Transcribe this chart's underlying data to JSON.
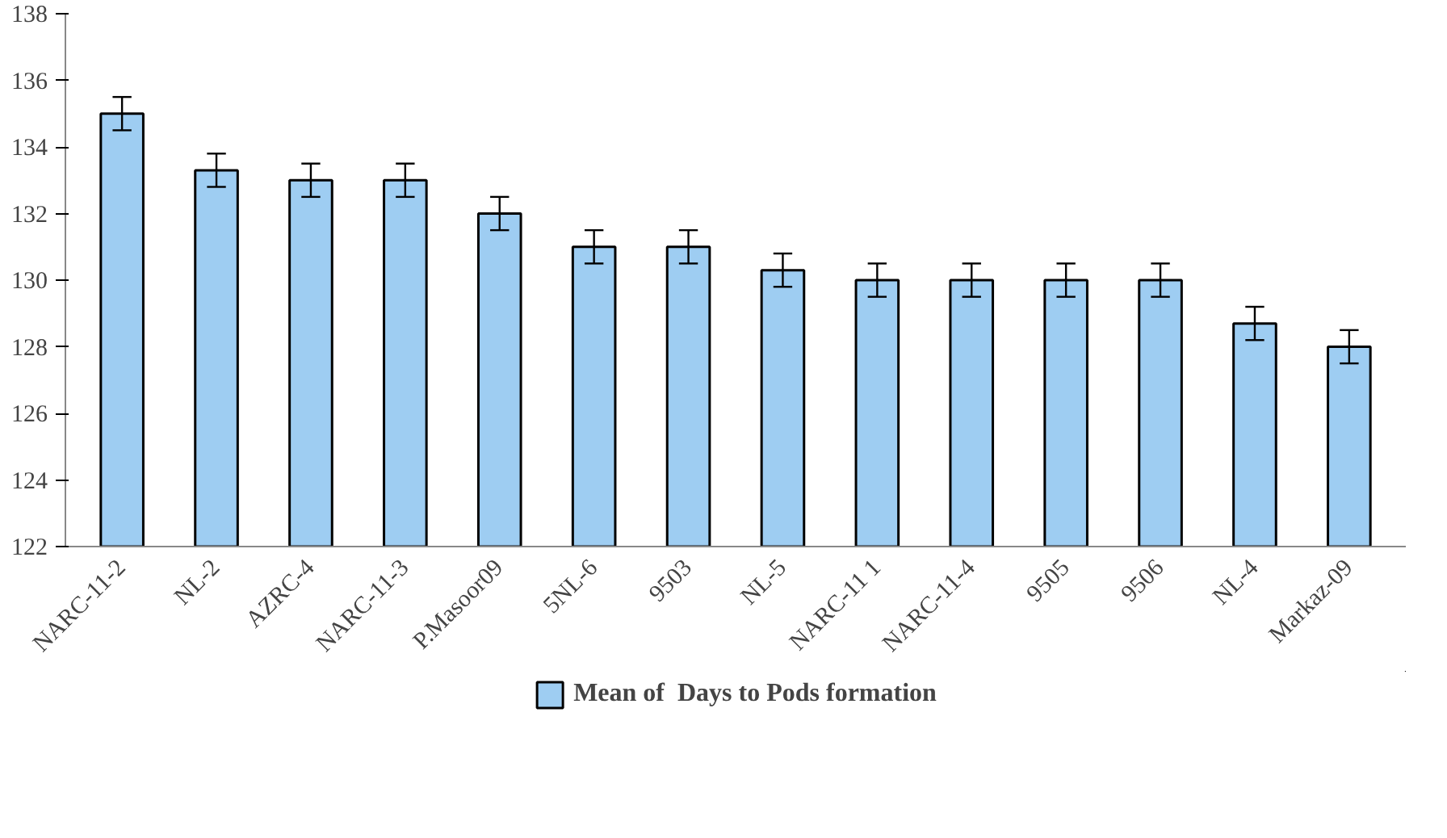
{
  "chart_data": {
    "type": "bar",
    "categories": [
      "NARC-11-2",
      "NL-2",
      "AZRC-4",
      "NARC-11-3",
      "P.Masoor09",
      "5NL-6",
      "9503",
      "NL-5",
      "NARC-11 1",
      "NARC-11-4",
      "9505",
      "9506",
      "NL-4",
      "Markaz-09"
    ],
    "series": [
      {
        "name": "Mean of  Days to Pods formation",
        "color": "#9ecdf2",
        "values": [
          135,
          133.3,
          133,
          133,
          132,
          131,
          131,
          130.3,
          130,
          130,
          130,
          130,
          128.7,
          128
        ],
        "errors": [
          0.5,
          0.5,
          0.5,
          0.5,
          0.5,
          0.5,
          0.5,
          0.5,
          0.5,
          0.5,
          0.5,
          0.5,
          0.5,
          0.5
        ]
      }
    ],
    "ylim": [
      122,
      138
    ],
    "yticks": [
      122,
      124,
      126,
      128,
      130,
      132,
      134,
      136,
      138
    ],
    "grid": false,
    "legend": "bottom"
  }
}
